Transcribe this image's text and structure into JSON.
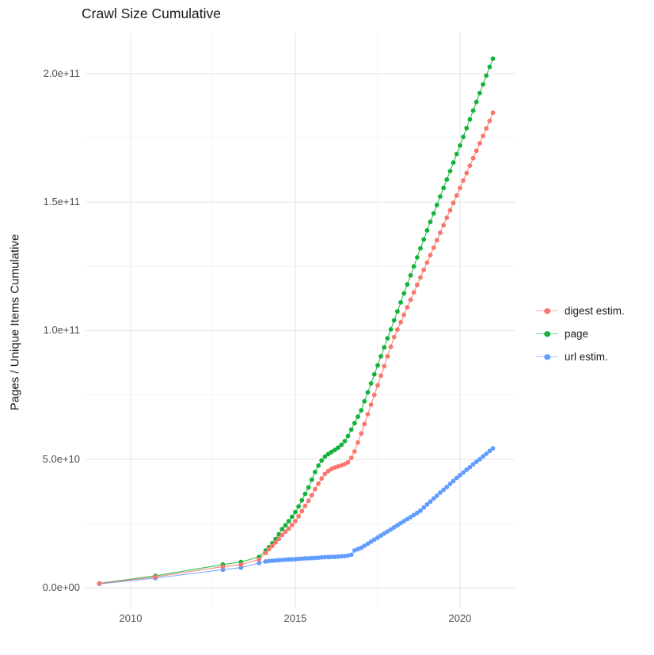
{
  "chart_data": {
    "type": "scatter-line",
    "title": "Crawl Size Cumulative",
    "xlabel": "",
    "ylabel": "Pages / Unique Items Cumulative",
    "legend_position": "right",
    "grid": {
      "color_major": "#e8e8e8",
      "color_minor": "#f0f0f0",
      "x_major": [
        2010,
        2015,
        2020
      ],
      "x_minor": [
        2012.5,
        2017.5
      ],
      "y_major": [
        0,
        50000000000,
        100000000000,
        150000000000,
        200000000000
      ],
      "y_minor": [
        25000000000,
        75000000000,
        125000000000,
        175000000000
      ]
    },
    "x_domain": [
      2008.63,
      2021.66
    ],
    "y_domain": [
      -8000000000,
      215700000000
    ],
    "x_ticks": [
      {
        "v": 2010,
        "label": "2010"
      },
      {
        "v": 2015,
        "label": "2015"
      },
      {
        "v": 2020,
        "label": "2020"
      }
    ],
    "y_ticks": [
      {
        "v": 0,
        "label": "0.0e+00"
      },
      {
        "v": 50000000000,
        "label": "5.0e+10"
      },
      {
        "v": 100000000000,
        "label": "1.0e+11"
      },
      {
        "v": 150000000000,
        "label": "1.5e+11"
      },
      {
        "v": 200000000000,
        "label": "2.0e+11"
      }
    ],
    "x_unit": "year_decimal",
    "value_multiplier": 1000000000,
    "x": [
      2009.05,
      2010.75,
      2012.8,
      2013.35,
      2013.9,
      2014.1,
      2014.2,
      2014.3,
      2014.4,
      2014.5,
      2014.6,
      2014.7,
      2014.8,
      2014.9,
      2015.0,
      2015.1,
      2015.2,
      2015.3,
      2015.4,
      2015.5,
      2015.6,
      2015.7,
      2015.8,
      2015.9,
      2016.0,
      2016.1,
      2016.2,
      2016.3,
      2016.4,
      2016.5,
      2016.6,
      2016.7,
      2016.8,
      2016.9,
      2017.0,
      2017.1,
      2017.2,
      2017.3,
      2017.4,
      2017.5,
      2017.6,
      2017.7,
      2017.8,
      2017.9,
      2018.0,
      2018.1,
      2018.2,
      2018.3,
      2018.4,
      2018.5,
      2018.6,
      2018.7,
      2018.8,
      2018.9,
      2019.0,
      2019.1,
      2019.2,
      2019.3,
      2019.4,
      2019.5,
      2019.6,
      2019.7,
      2019.8,
      2019.9,
      2020.0,
      2020.1,
      2020.2,
      2020.3,
      2020.4,
      2020.5,
      2020.6,
      2020.7,
      2020.8,
      2020.9,
      2021.0
    ],
    "draw_order": [
      1,
      2,
      0
    ],
    "series": [
      {
        "name": "digest estim.",
        "color": "#f8766d",
        "values_e9": [
          1.6,
          4.2,
          8.2,
          9.0,
          11.0,
          13.5,
          15.0,
          16.3,
          17.6,
          19.0,
          20.5,
          21.8,
          23.0,
          24.4,
          25.9,
          27.8,
          29.8,
          31.8,
          33.8,
          36.0,
          38.3,
          40.5,
          42.5,
          44.3,
          45.4,
          46.2,
          46.8,
          47.2,
          47.6,
          48.1,
          48.8,
          50.5,
          53.0,
          56.5,
          60.0,
          63.7,
          67.5,
          71.2,
          75.0,
          78.7,
          82.5,
          86.2,
          90.0,
          93.7,
          97.5,
          100.4,
          103.3,
          106.2,
          109.1,
          112.0,
          114.9,
          117.8,
          120.7,
          123.6,
          126.5,
          129.4,
          132.3,
          135.2,
          138.1,
          141.0,
          143.9,
          146.8,
          149.7,
          152.6,
          155.5,
          158.4,
          161.3,
          164.2,
          167.1,
          170.0,
          172.9,
          175.8,
          178.7,
          181.6,
          184.8
        ]
      },
      {
        "name": "page",
        "color": "#13b33a",
        "values_e9": [
          1.7,
          4.6,
          9.0,
          10.0,
          12.0,
          14.5,
          15.8,
          17.3,
          18.9,
          20.8,
          22.8,
          24.3,
          25.9,
          27.6,
          29.4,
          31.6,
          34.0,
          36.5,
          39.0,
          42.0,
          45.0,
          47.5,
          49.5,
          51.0,
          52.0,
          52.8,
          53.6,
          54.5,
          55.6,
          57.0,
          59.0,
          61.5,
          64.0,
          66.5,
          69.0,
          72.5,
          76.0,
          79.5,
          83.0,
          86.5,
          90.0,
          93.5,
          97.0,
          100.5,
          104.0,
          107.5,
          111.0,
          114.5,
          118.0,
          121.5,
          125.0,
          128.5,
          132.0,
          135.5,
          139.0,
          142.3,
          145.6,
          148.9,
          152.2,
          155.5,
          158.8,
          162.1,
          165.4,
          168.7,
          172.0,
          175.4,
          178.8,
          182.2,
          185.6,
          189.0,
          192.4,
          195.8,
          199.2,
          202.6,
          205.8
        ]
      },
      {
        "name": "url estim.",
        "color": "#619cff",
        "values_e9": [
          1.5,
          3.7,
          7.0,
          7.8,
          9.6,
          10.2,
          10.4,
          10.5,
          10.6,
          10.7,
          10.8,
          10.9,
          11.0,
          11.0,
          11.1,
          11.2,
          11.3,
          11.4,
          11.4,
          11.5,
          11.6,
          11.7,
          11.8,
          11.9,
          11.9,
          12.0,
          12.0,
          12.1,
          12.2,
          12.3,
          12.5,
          12.8,
          14.5,
          15.0,
          15.5,
          16.3,
          17.1,
          17.9,
          18.7,
          19.5,
          20.3,
          21.1,
          21.9,
          22.7,
          23.5,
          24.3,
          25.1,
          25.9,
          26.7,
          27.5,
          28.3,
          29.1,
          30.0,
          31.2,
          32.4,
          33.5,
          34.7,
          35.8,
          37.0,
          38.1,
          39.2,
          40.4,
          41.5,
          42.7,
          43.8,
          44.8,
          45.9,
          46.9,
          48.0,
          49.0,
          50.0,
          51.1,
          52.1,
          53.2,
          54.2
        ]
      }
    ]
  }
}
